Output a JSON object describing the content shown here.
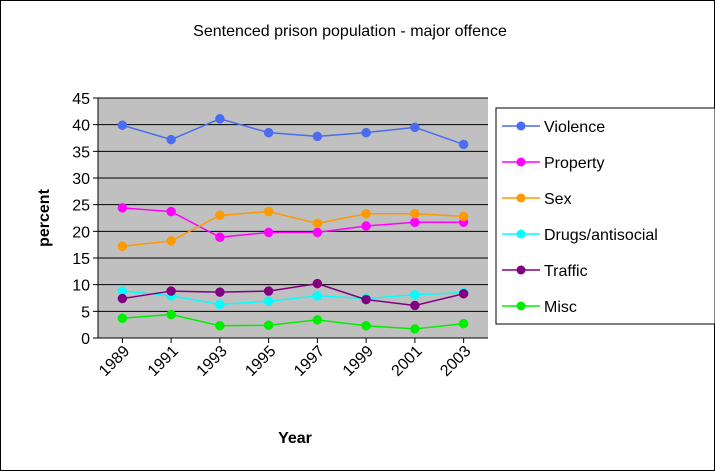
{
  "chart_data": {
    "type": "line",
    "title": "Sentenced prison population - major offence",
    "xlabel": "Year",
    "ylabel": "percent",
    "ylim": [
      0,
      45
    ],
    "y_ticks": [
      "0",
      "5",
      "10",
      "15",
      "20",
      "25",
      "30",
      "35",
      "40",
      "45"
    ],
    "x_tick_labels": [
      "1989",
      "1991",
      "1993",
      "1995",
      "1997",
      "1999",
      "2001",
      "2003"
    ],
    "x": [
      1990,
      1992,
      1994,
      1996,
      1998,
      2000,
      2002,
      2004
    ],
    "grid": "horizontal",
    "plot_background": "#c0c0c0",
    "legend_position": "right",
    "series": [
      {
        "name": "Violence",
        "color": "#4a6cf0",
        "values": [
          39.9,
          37.2,
          41.1,
          38.5,
          37.8,
          38.5,
          39.5,
          36.3
        ]
      },
      {
        "name": "Property",
        "color": "#ff00ff",
        "values": [
          24.4,
          23.7,
          18.9,
          19.8,
          19.8,
          21.0,
          21.7,
          21.7
        ]
      },
      {
        "name": "Sex",
        "color": "#ff9900",
        "values": [
          17.2,
          18.2,
          23.0,
          23.7,
          21.5,
          23.3,
          23.3,
          22.8
        ]
      },
      {
        "name": "Drugs/antisocial",
        "color": "#00ffff",
        "values": [
          8.8,
          7.9,
          6.3,
          6.9,
          7.9,
          7.4,
          8.1,
          8.5
        ]
      },
      {
        "name": "Traffic",
        "color": "#800080",
        "values": [
          7.4,
          8.8,
          8.6,
          8.8,
          10.2,
          7.2,
          6.1,
          8.3
        ]
      },
      {
        "name": "Misc",
        "color": "#00ee00",
        "values": [
          3.7,
          4.4,
          2.3,
          2.4,
          3.4,
          2.3,
          1.7,
          2.7
        ]
      }
    ]
  }
}
